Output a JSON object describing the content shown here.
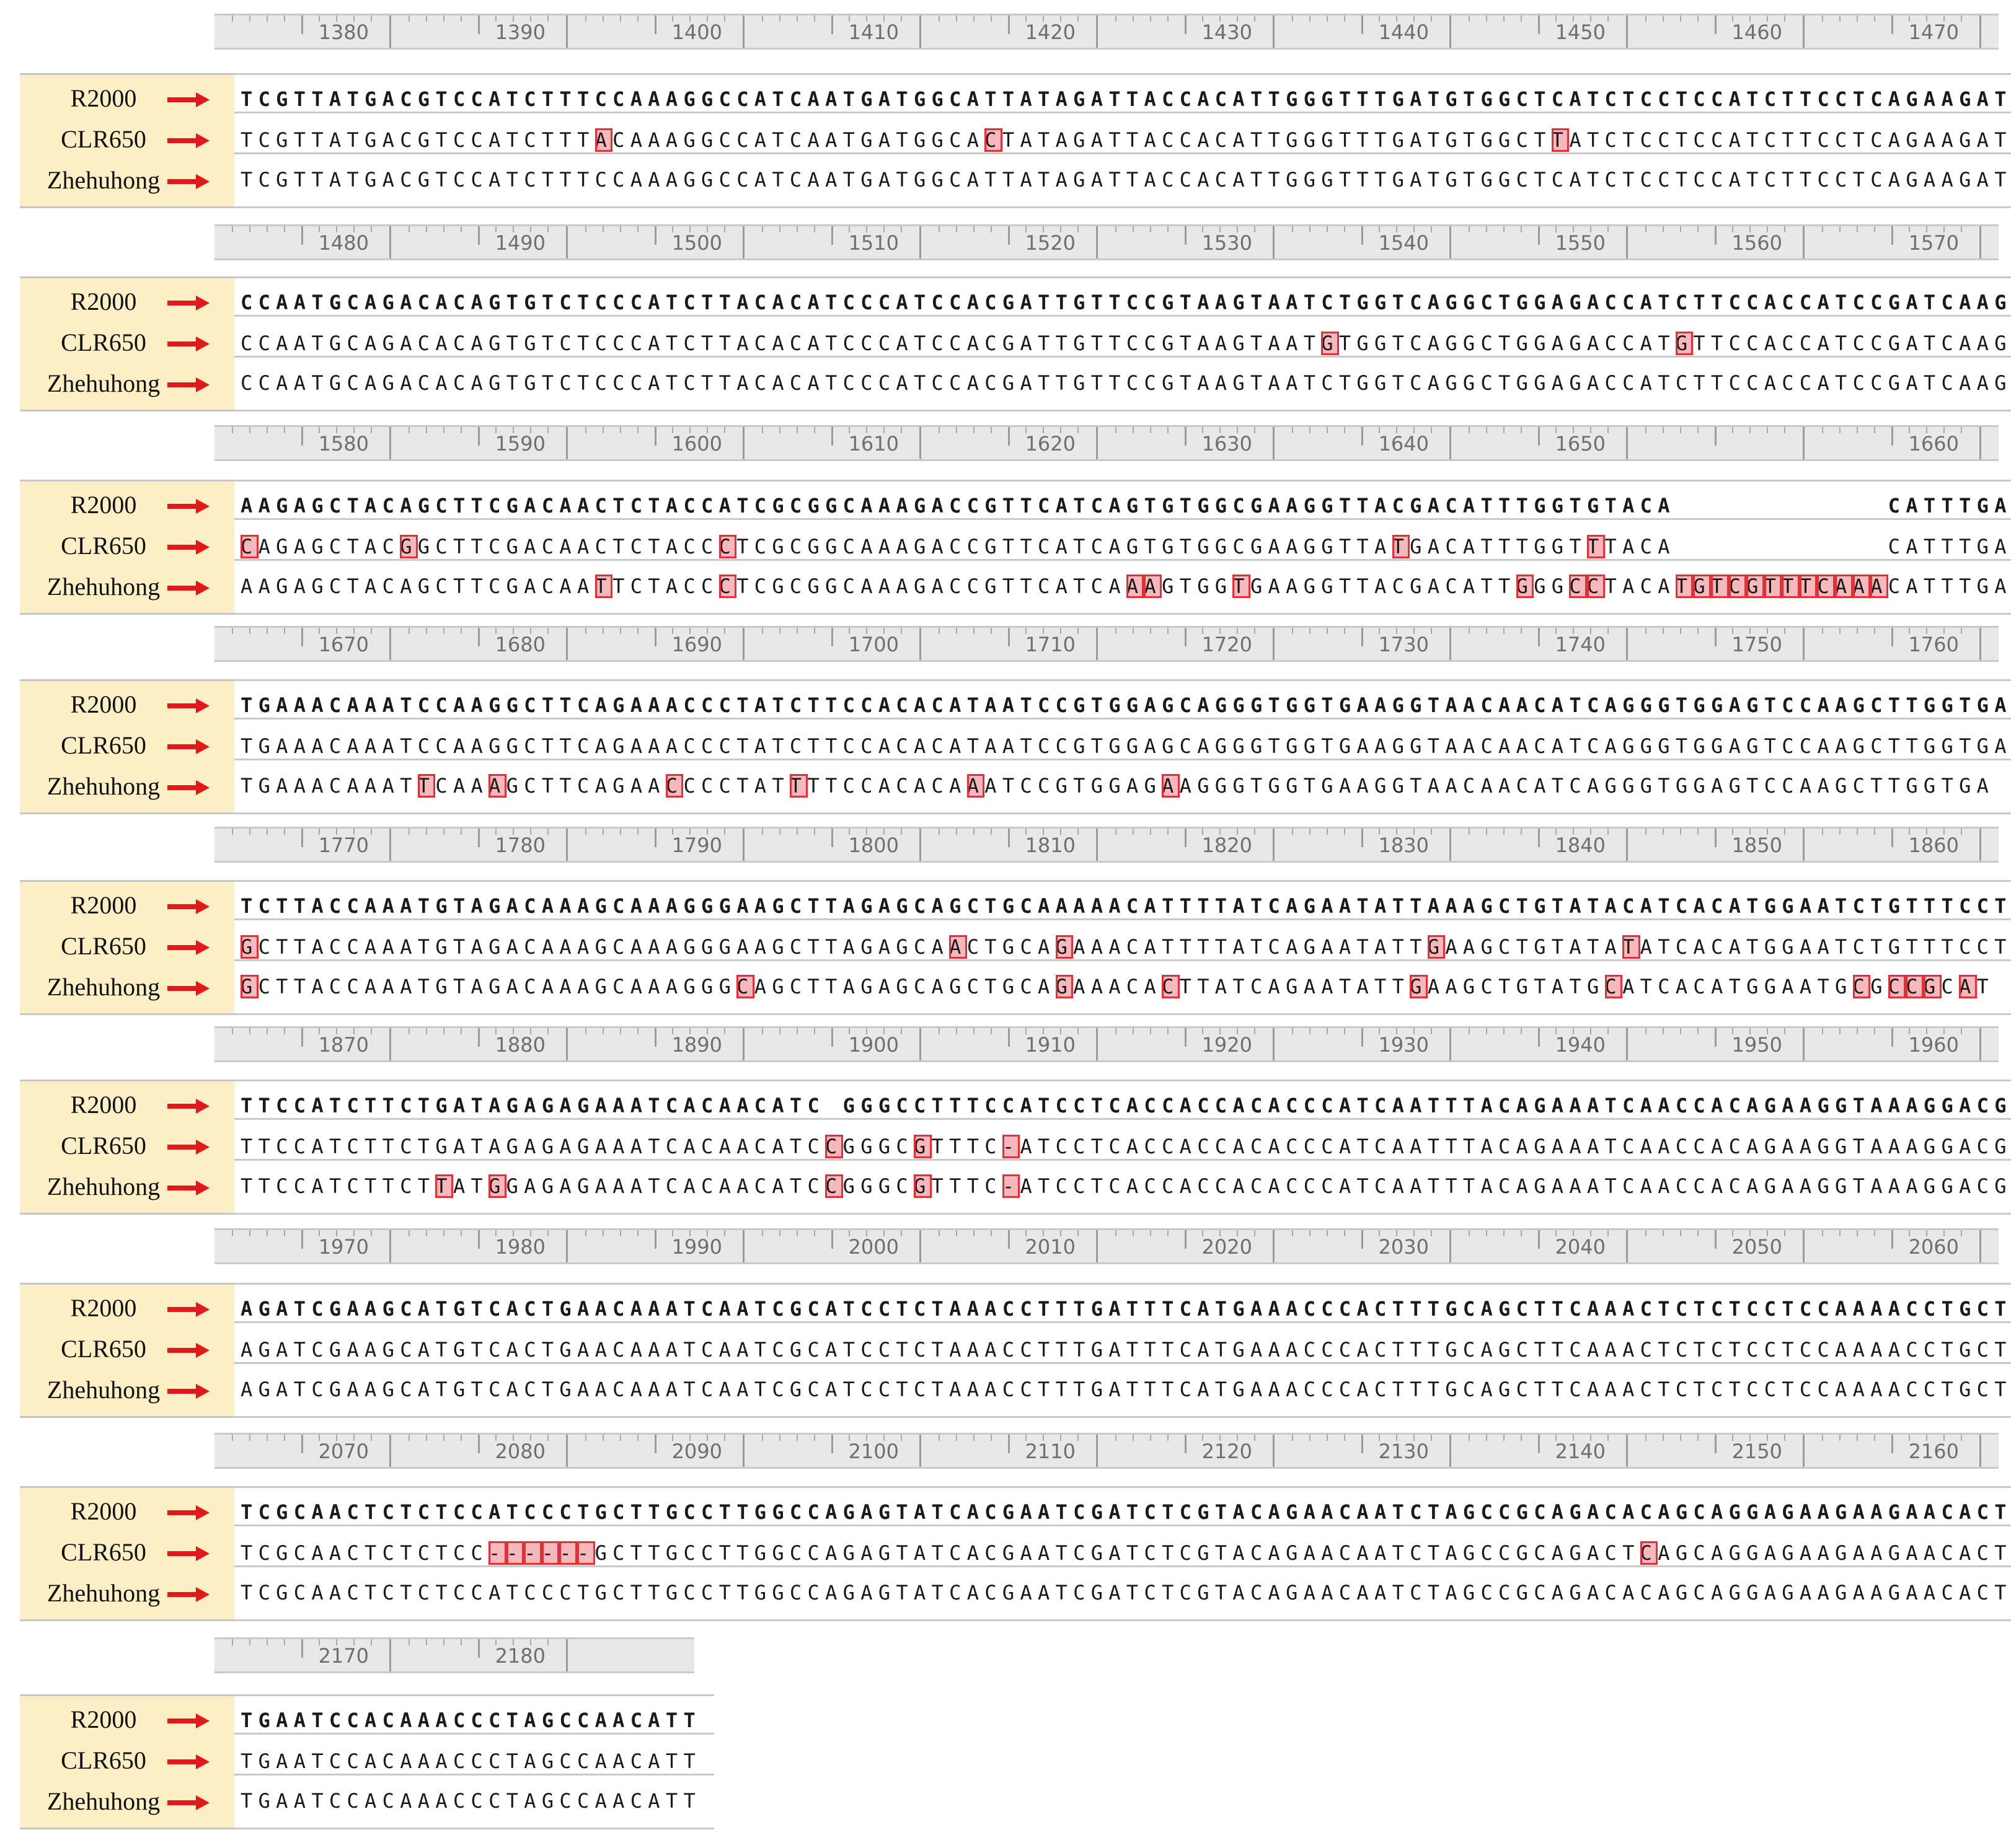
{
  "sample_labels": [
    "R2000",
    "CLR650",
    "Zhehuhong"
  ],
  "colors": {
    "label_bg": "#fcefc6",
    "arrow": "#e01a1a",
    "highlight_fill": "#f7b8bd",
    "highlight_border": "#e0303a",
    "ruler_bg": "#e8e8e8"
  },
  "blocks": [
    {
      "ruler": [
        "1380",
        "1390",
        "1400",
        "1410",
        "1420",
        "1430",
        "1440",
        "1450",
        "1460",
        "1470"
      ],
      "rows": [
        "TCGTTATGACGTCCATCTTTCCAAAGGCCATCAATGATGGCATTATAGATTACCACATTGGGTTTGATGTGGCTCATCTCCTCCATCTTCCTCAGAAGAT",
        "TCGTTATGACGTCCATCTTTACAAAGGCCATCAATGATGGCACTATAGATTACCACATTGGGTTTGATGTGGCTTATCTCCTCCATCTTCCTCAGAAGAT",
        "TCGTTATGACGTCCATCTTTCCAAAGGCCATCAATGATGGCATTATAGATTACCACATTGGGTTTGATGTGGCTCATCTCCTCCATCTTCCTCAGAAGAT"
      ],
      "highlights": [
        [],
        [
          20,
          42,
          74
        ],
        []
      ]
    },
    {
      "ruler": [
        "1480",
        "1490",
        "1500",
        "1510",
        "1520",
        "1530",
        "1540",
        "1550",
        "1560",
        "1570"
      ],
      "rows": [
        "CCAATGCAGACACAGTGTCTCCCATCTTACACATCCCATCCACGATTGTTCCGTAAGTAATCTGGTCAGGCTGGAGACCATCTTCCACCATCCGATCAAG",
        "CCAATGCAGACACAGTGTCTCCCATCTTACACATCCCATCCACGATTGTTCCGTAAGTAATGTGGTCAGGCTGGAGACCATGTTCCACCATCCGATCAAG",
        "CCAATGCAGACACAGTGTCTCCCATCTTACACATCCCATCCACGATTGTTCCGTAAGTAATCTGGTCAGGCTGGAGACCATCTTCCACCATCCGATCAAG"
      ],
      "highlights": [
        [],
        [
          61,
          81
        ],
        []
      ]
    },
    {
      "ruler": [
        "1580",
        "1590",
        "1600",
        "1610",
        "1620",
        "1630",
        "1640",
        "1650",
        "",
        "1660"
      ],
      "rows": [
        "AAGAGCTACAGCTTCGACAACTCTACCATCGCGGCAAAGACCGTTCATCAGTGTGGCGAAGGTTACGACATTTGGTGTACA            CATTTGA",
        "CAGAGCTACGGCTTCGACAACTCTACCCTCGCGGCAAAGACCGTTCATCAGTGTGGCGAAGGTTATGACATTTGGTTTACA            CATTTGA",
        "AAGAGCTACAGCTTCGACAATTCTACCCTCGCGGCAAAGACCGTTCATCAAAGTGGTGAAGGTTACGACATTGGGCCTACATGTCGTTTCAAACATTTGA"
      ],
      "highlights": [
        [],
        [
          0,
          9,
          27,
          65,
          76
        ],
        [
          20,
          27,
          50,
          51,
          56,
          72,
          75,
          76,
          81,
          82,
          83,
          84,
          85,
          86,
          87,
          88,
          89,
          90,
          91,
          92
        ]
      ]
    },
    {
      "ruler": [
        "1670",
        "1680",
        "1690",
        "1700",
        "1710",
        "1720",
        "1730",
        "1740",
        "1750",
        "1760"
      ],
      "rows": [
        "TGAAACAAATCCAAGGCTTCAGAAACCCTATCTTCCACACATAATCCGTGGAGCAGGGTGGTGAAGGTAACAACATCAGGGTGGAGTCCAAGCTTGGTGA",
        "TGAAACAAATCCAAGGCTTCAGAAACCCTATCTTCCACACATAATCCGTGGAGCAGGGTGGTGAAGGTAACAACATCAGGGTGGAGTCCAAGCTTGGTGA",
        "TGAAACAAATTCAAAGCTTCAGAACCCCTATTTTCCACACAAATCCGTGGAGAAGGGTGGTGAAGGTAACAACATCAGGGTGGAGTCCAAGCTTGGTGA"
      ],
      "highlights": [
        [],
        [],
        [
          10,
          14,
          24,
          31,
          41,
          52
        ]
      ]
    },
    {
      "ruler": [
        "1770",
        "1780",
        "1790",
        "1800",
        "1810",
        "1820",
        "1830",
        "1840",
        "1850",
        "1860"
      ],
      "rows": [
        "TCTTACCAAATGTAGACAAAGCAAAGGGAAGCTTAGAGCAGCTGCAAAAACATTTTATCAGAATATTAAAGCTGTATACATCACATGGAATCTGTTTCCT",
        "GCTTACCAAATGTAGACAAAGCAAAGGGAAGCTTAGAGCAACTGCAGAAACATTTTATCAGAATATTGAAGCTGTATATATCACATGGAATCTGTTTCCT",
        "GCTTACCAAATGTAGACAAAGCAAAGGGCAGCTTAGAGCAGCTGCAGAAACACTTATCAGAATATTGAAGCTGTATGCATCACATGGAATGCGCCGCAT"
      ],
      "highlights": [
        [],
        [
          0,
          40,
          46,
          67,
          78
        ],
        [
          0,
          28,
          46,
          52,
          66,
          77,
          91,
          93,
          94,
          95,
          97
        ]
      ]
    },
    {
      "ruler": [
        "1870",
        "1880",
        "1890",
        "1900",
        "1910",
        "1920",
        "1930",
        "1940",
        "1950",
        "1960"
      ],
      "rows": [
        "TTCCATCTTCTGATAGAGAGAAATCACAACATC GGGCCTTTCCATCCTCACCACCACACCCATCAATTTACAGAAATCAACCACAGAAGGTAAAGGACG",
        "TTCCATCTTCTGATAGAGAGAAATCACAACATCCGGGCGTTTC-ATCCTCACCACCACACCCATCAATTTACAGAAATCAACCACAGAAGGTAAAGGACG",
        "TTCCATCTTCTTATGGAGAGAAATCACAACATCCGGGCGTTTC-ATCCTCACCACCACACCCATCAATTTACAGAAATCAACCACAGAAGGTAAAGGACG"
      ],
      "highlights": [
        [],
        [
          33,
          38,
          43
        ],
        [
          11,
          14,
          33,
          38,
          43
        ]
      ]
    },
    {
      "ruler": [
        "1970",
        "1980",
        "1990",
        "2000",
        "2010",
        "2020",
        "2030",
        "2040",
        "2050",
        "2060"
      ],
      "rows": [
        "AGATCGAAGCATGTCACTGAACAAATCAATCGCATCCTCTAAACCTTTGATTTCATGAAACCCACTTTGCAGCTTCAAACTCTCTCCTCCAAAACCTGCT",
        "AGATCGAAGCATGTCACTGAACAAATCAATCGCATCCTCTAAACCTTTGATTTCATGAAACCCACTTTGCAGCTTCAAACTCTCTCCTCCAAAACCTGCT",
        "AGATCGAAGCATGTCACTGAACAAATCAATCGCATCCTCTAAACCTTTGATTTCATGAAACCCACTTTGCAGCTTCAAACTCTCTCCTCCAAAACCTGCT"
      ],
      "highlights": [
        [],
        [],
        []
      ]
    },
    {
      "ruler": [
        "2070",
        "2080",
        "2090",
        "2100",
        "2110",
        "2120",
        "2130",
        "2140",
        "2150",
        "2160"
      ],
      "rows": [
        "TCGCAACTCTCTCCATCCCTGCTTGCCTTGGCCAGAGTATCACGAATCGATCTCGTACAGAACAATCTAGCCGCAGACACAGCAGGAGAAGAAGAACACT",
        "TCGCAACTCTCTCC------GCTTGCCTTGGCCAGAGTATCACGAATCGATCTCGTACAGAACAATCTAGCCGCAGACTCAGCAGGAGAAGAAGAACACT",
        "TCGCAACTCTCTCCATCCCTGCTTGCCTTGGCCAGAGTATCACGAATCGATCTCGTACAGAACAATCTAGCCGCAGACACAGCAGGAGAAGAAGAACACT"
      ],
      "highlights": [
        [],
        [
          14,
          15,
          16,
          17,
          18,
          19,
          79
        ],
        []
      ]
    },
    {
      "ruler": [
        "2170",
        "2180"
      ],
      "rows": [
        "TGAATCCACAAACCCTAGCCAACATT",
        "TGAATCCACAAACCCTAGCCAACATT",
        "TGAATCCACAAACCCTAGCCAACATT"
      ],
      "highlights": [
        [],
        [],
        []
      ]
    }
  ]
}
